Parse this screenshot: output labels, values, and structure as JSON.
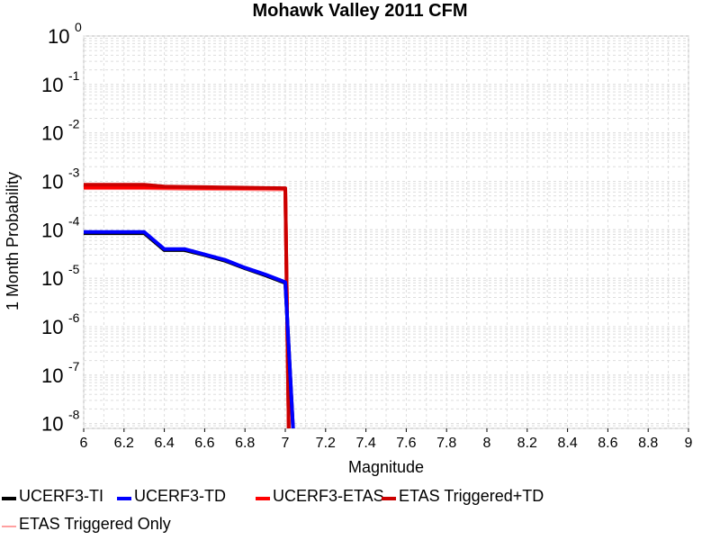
{
  "chart_data": {
    "type": "line",
    "title": "Mohawk Valley 2011 CFM",
    "xlabel": "Magnitude",
    "ylabel": "1 Month Probability",
    "xlim": [
      6,
      9
    ],
    "ylim_log10": [
      -8.1,
      0
    ],
    "y_scale": "log",
    "grid": true,
    "legend_position": "bottom",
    "x_ticks": [
      "6",
      "6.2",
      "6.4",
      "6.6",
      "6.8",
      "7",
      "7.2",
      "7.4",
      "7.6",
      "7.8",
      "8",
      "8.2",
      "8.4",
      "8.6",
      "8.8",
      "9"
    ],
    "y_ticks": [
      {
        "base": "10",
        "exp": "0"
      },
      {
        "base": "10",
        "exp": "-1"
      },
      {
        "base": "10",
        "exp": "-2"
      },
      {
        "base": "10",
        "exp": "-3"
      },
      {
        "base": "10",
        "exp": "-4"
      },
      {
        "base": "10",
        "exp": "-5"
      },
      {
        "base": "10",
        "exp": "-6"
      },
      {
        "base": "10",
        "exp": "-7"
      },
      {
        "base": "10",
        "exp": "-8"
      }
    ],
    "series": [
      {
        "name": "UCERF3-TI",
        "color": "#000000",
        "x": [
          6.0,
          6.1,
          6.2,
          6.3,
          6.4,
          6.5,
          6.6,
          6.7,
          6.8,
          6.9,
          7.0,
          7.05
        ],
        "y": [
          8.5e-05,
          8.5e-05,
          8.5e-05,
          8.5e-05,
          3.8e-05,
          3.8e-05,
          3e-05,
          2.3e-05,
          1.6e-05,
          1.15e-05,
          8e-06,
          1e-09
        ]
      },
      {
        "name": "UCERF3-TD",
        "color": "#0000ff",
        "x": [
          6.0,
          6.1,
          6.2,
          6.3,
          6.4,
          6.5,
          6.6,
          6.7,
          6.8,
          6.9,
          7.0,
          7.05
        ],
        "y": [
          9e-05,
          9e-05,
          9e-05,
          9e-05,
          4e-05,
          4e-05,
          3.1e-05,
          2.4e-05,
          1.65e-05,
          1.2e-05,
          8.3e-06,
          1e-09
        ]
      },
      {
        "name": "UCERF3-ETAS",
        "color": "#ff0000",
        "x": [
          6.0,
          6.1,
          6.2,
          6.3,
          6.4,
          6.5,
          6.6,
          6.7,
          6.8,
          6.9,
          7.0,
          7.02
        ],
        "y": [
          0.00075,
          0.00075,
          0.00075,
          0.00075,
          0.00074,
          0.00074,
          0.00073,
          0.00073,
          0.00072,
          0.00072,
          0.00071,
          1e-09
        ]
      },
      {
        "name": "ETAS Triggered+TD",
        "color": "#cc0000",
        "x": [
          6.0,
          6.1,
          6.2,
          6.3,
          6.4,
          6.5,
          6.6,
          6.7,
          6.8,
          6.9,
          7.0,
          7.02
        ],
        "y": [
          0.00085,
          0.00085,
          0.00085,
          0.00085,
          0.00078,
          0.00077,
          0.00076,
          0.00075,
          0.00074,
          0.00073,
          0.00072,
          1e-09
        ]
      },
      {
        "name": "ETAS Triggered Only",
        "color": "#ff8080",
        "x": [
          6.0,
          6.1,
          6.2,
          6.3,
          6.4,
          6.5,
          6.6,
          6.7,
          6.8,
          6.9,
          7.0,
          7.02
        ],
        "y": [
          0.00072,
          0.00072,
          0.00072,
          0.00072,
          0.00071,
          0.0007,
          0.0007,
          0.00069,
          0.00069,
          0.00068,
          0.00068,
          1e-09
        ]
      }
    ]
  }
}
